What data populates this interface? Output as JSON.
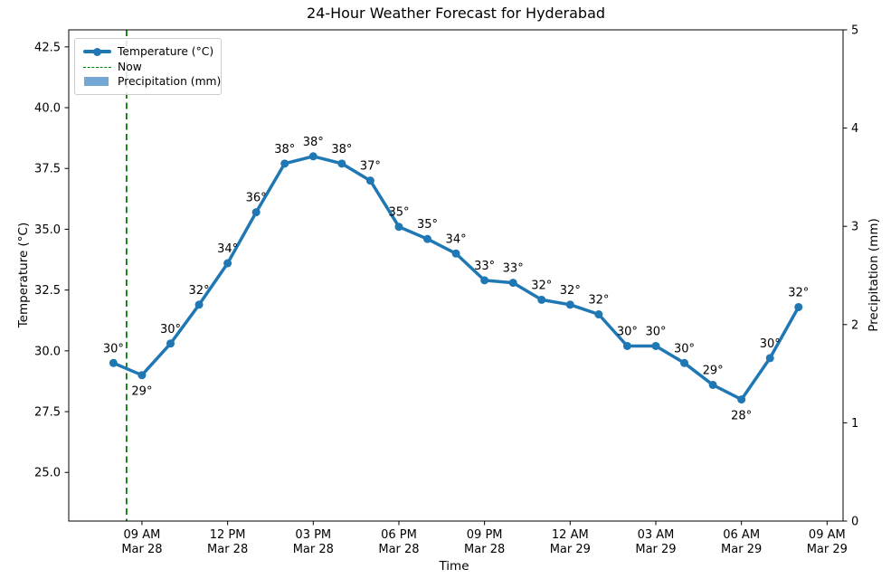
{
  "title": "24-Hour Weather Forecast for Hyderabad",
  "axes": {
    "x_label": "Time",
    "y_left_label": "Temperature (°C)",
    "y_right_label": "Precipitation (mm)",
    "y_left_tick_labels": [
      "42.5",
      "40.0",
      "37.5",
      "35.0",
      "32.5",
      "30.0",
      "27.5",
      "25.0"
    ],
    "y_right_tick_labels": [
      "5",
      "4",
      "3",
      "2",
      "1",
      "0"
    ],
    "x_tick_labels": [
      {
        "line1": "09 AM",
        "line2": "Mar 28"
      },
      {
        "line1": "12 PM",
        "line2": "Mar 28"
      },
      {
        "line1": "03 PM",
        "line2": "Mar 28"
      },
      {
        "line1": "06 PM",
        "line2": "Mar 28"
      },
      {
        "line1": "09 PM",
        "line2": "Mar 28"
      },
      {
        "line1": "12 AM",
        "line2": "Mar 29"
      },
      {
        "line1": "03 AM",
        "line2": "Mar 29"
      },
      {
        "line1": "06 AM",
        "line2": "Mar 29"
      },
      {
        "line1": "09 AM",
        "line2": "Mar 29"
      }
    ]
  },
  "legend": {
    "temperature_label": "Temperature (°C)",
    "now_label": "Now",
    "precipitation_label": "Precipitation (mm)"
  },
  "colors": {
    "temperature": "#1f77b4",
    "now": "#008000",
    "precipitation": "#72a8d3",
    "axis": "#000000"
  },
  "chart_data": {
    "type": "line",
    "title": "24-Hour Weather Forecast for Hyderabad",
    "xlabel": "Time",
    "ylabel_left": "Temperature (°C)",
    "ylabel_right": "Precipitation (mm)",
    "x": [
      "08 AM Mar 28",
      "09 AM Mar 28",
      "10 AM Mar 28",
      "11 AM Mar 28",
      "12 PM Mar 28",
      "01 PM Mar 28",
      "02 PM Mar 28",
      "03 PM Mar 28",
      "04 PM Mar 28",
      "05 PM Mar 28",
      "06 PM Mar 28",
      "07 PM Mar 28",
      "08 PM Mar 28",
      "09 PM Mar 28",
      "10 PM Mar 28",
      "11 PM Mar 28",
      "12 AM Mar 29",
      "01 AM Mar 29",
      "02 AM Mar 29",
      "03 AM Mar 29",
      "04 AM Mar 29",
      "05 AM Mar 29",
      "06 AM Mar 29",
      "07 AM Mar 29",
      "08 AM Mar 29"
    ],
    "series": [
      {
        "name": "Temperature (°C)",
        "type": "line",
        "color": "#1f77b4",
        "values": [
          29.5,
          29.0,
          30.3,
          31.9,
          33.6,
          35.7,
          37.7,
          38.0,
          37.7,
          37.0,
          35.1,
          34.6,
          34.0,
          32.9,
          32.8,
          32.1,
          31.9,
          31.5,
          30.2,
          30.2,
          29.5,
          28.6,
          28.0,
          29.7,
          31.8
        ],
        "point_labels": [
          "30°",
          "29°",
          "30°",
          "32°",
          "34°",
          "36°",
          "38°",
          "38°",
          "38°",
          "37°",
          "35°",
          "35°",
          "34°",
          "33°",
          "33°",
          "32°",
          "32°",
          "32°",
          "30°",
          "30°",
          "30°",
          "29°",
          "28°",
          "30°",
          "32°"
        ],
        "label_below_indices": [
          1,
          22
        ]
      },
      {
        "name": "Precipitation (mm)",
        "type": "bar",
        "color": "#72a8d3",
        "values": [
          0,
          0,
          0,
          0,
          0,
          0,
          0,
          0,
          0,
          0,
          0,
          0,
          0,
          0,
          0,
          0,
          0,
          0,
          0,
          0,
          0,
          0,
          0,
          0,
          0
        ]
      }
    ],
    "now_line": {
      "label": "Now",
      "color": "#008000",
      "x_index": 0.46
    },
    "y_left_ticks": [
      42.5,
      40.0,
      37.5,
      35.0,
      32.5,
      30.0,
      27.5,
      25.0
    ],
    "y_right_ticks": [
      5,
      4,
      3,
      2,
      1,
      0
    ],
    "x_tick_indices": [
      1,
      4,
      7,
      10,
      13,
      16,
      19,
      22,
      25
    ],
    "ylim_left": [
      23.0,
      43.2
    ],
    "ylim_right": [
      0,
      5
    ],
    "grid": false,
    "legend_position": "upper left"
  }
}
